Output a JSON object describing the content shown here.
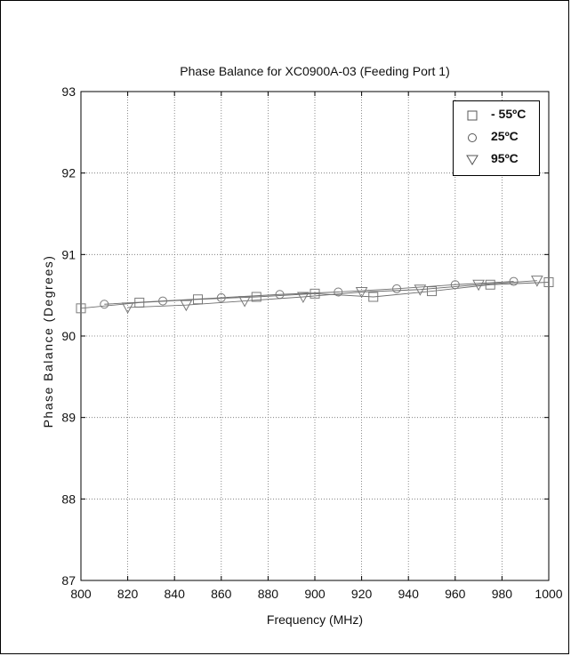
{
  "chart_data": {
    "type": "line",
    "title": "Phase Balance for XC0900A-03 (Feeding Port 1)",
    "xlabel": "Frequency (MHz)",
    "ylabel": "Phase Balance (Degrees)",
    "xlim": [
      800,
      1000
    ],
    "ylim": [
      87,
      93
    ],
    "xticks": [
      "800",
      "820",
      "840",
      "860",
      "880",
      "900",
      "920",
      "940",
      "960",
      "980",
      "1000"
    ],
    "yticks": [
      "87",
      "88",
      "89",
      "90",
      "91",
      "92",
      "93"
    ],
    "grid": true,
    "legend_position": "top-right",
    "series": [
      {
        "name": "- 55ºC",
        "marker": "square",
        "x": [
          800,
          825,
          850,
          875,
          900,
          925,
          950,
          975,
          1000
        ],
        "y": [
          90.34,
          90.41,
          90.45,
          90.48,
          90.52,
          90.48,
          90.55,
          90.63,
          90.66
        ]
      },
      {
        "name": "25ºC",
        "marker": "circle",
        "x": [
          810,
          835,
          860,
          885,
          910,
          935,
          960,
          985
        ],
        "y": [
          90.39,
          90.43,
          90.47,
          90.51,
          90.54,
          90.58,
          90.63,
          90.67
        ]
      },
      {
        "name": "95ºC",
        "marker": "triangle-down",
        "x": [
          820,
          845,
          870,
          895,
          920,
          945,
          970,
          995
        ],
        "y": [
          90.35,
          90.38,
          90.43,
          90.48,
          90.54,
          90.57,
          90.63,
          90.68
        ]
      }
    ]
  },
  "colors": {
    "line": "#6e6e6e",
    "marker": "#7a7a7a",
    "grid": "#6f6f6f"
  }
}
